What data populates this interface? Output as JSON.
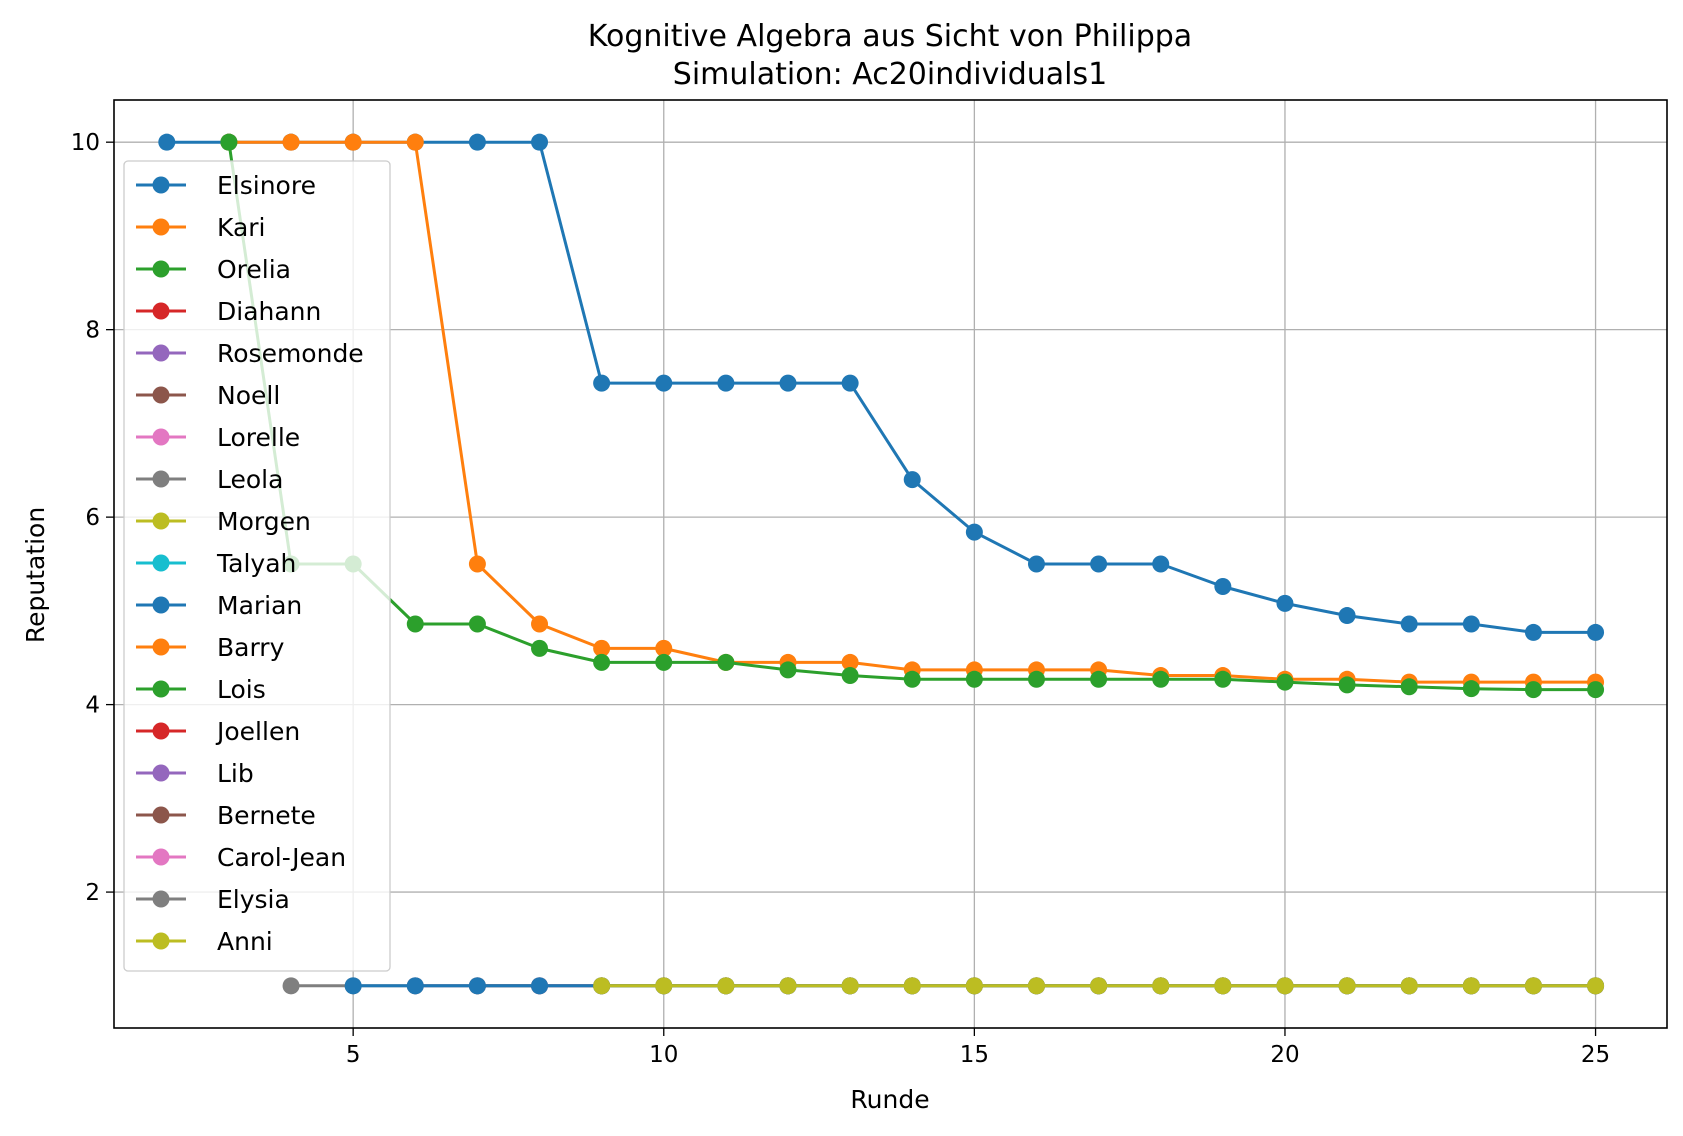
{
  "chart_data": {
    "type": "line",
    "title": "Kognitive Algebra aus Sicht von Philippa",
    "subtitle": "Simulation: Ac20individuals1",
    "xlabel": "Runde",
    "ylabel": "Reputation",
    "xlim": [
      1.15,
      26.15
    ],
    "ylim": [
      0.55,
      10.45
    ],
    "xticks": [
      5,
      10,
      15,
      20,
      25
    ],
    "yticks": [
      2,
      4,
      6,
      8,
      10
    ],
    "grid": true,
    "legend_position": "upper-left",
    "series": [
      {
        "name": "Elsinore",
        "color": "#1f77b4",
        "x": [
          2,
          3,
          4,
          5,
          6,
          7,
          8,
          9,
          10,
          11,
          12,
          13,
          14,
          15,
          16,
          17,
          18,
          19,
          20,
          21,
          22,
          23,
          24,
          25
        ],
        "y": [
          10,
          10,
          10,
          10,
          10,
          10,
          10,
          7.43,
          7.43,
          7.43,
          7.43,
          7.43,
          6.4,
          5.84,
          5.5,
          5.5,
          5.5,
          5.26,
          5.08,
          4.95,
          4.86,
          4.86,
          4.77,
          4.77
        ]
      },
      {
        "name": "Kari",
        "color": "#ff7f0e",
        "x": [
          3,
          4,
          5,
          6,
          7,
          8,
          9,
          10,
          11,
          12,
          13,
          14,
          15,
          16,
          17,
          18,
          19,
          20,
          21,
          22,
          23,
          24,
          25
        ],
        "y": [
          10,
          10,
          10,
          10,
          5.5,
          4.86,
          4.6,
          4.6,
          4.45,
          4.45,
          4.45,
          4.37,
          4.37,
          4.37,
          4.37,
          4.31,
          4.31,
          4.27,
          4.27,
          4.24,
          4.24,
          4.24,
          4.24
        ]
      },
      {
        "name": "Orelia",
        "color": "#2ca02c",
        "x": [
          3,
          4,
          5,
          6,
          7,
          8,
          9,
          10,
          11,
          12,
          13,
          14,
          15,
          16,
          17,
          18,
          19,
          20,
          21,
          22,
          23,
          24,
          25
        ],
        "y": [
          10,
          5.5,
          5.5,
          4.86,
          4.86,
          4.6,
          4.45,
          4.45,
          4.45,
          4.37,
          4.31,
          4.27,
          4.27,
          4.27,
          4.27,
          4.27,
          4.27,
          4.24,
          4.21,
          4.19,
          4.17,
          4.16,
          4.16
        ]
      },
      {
        "name": "Diahann",
        "color": "#d62728",
        "x": [],
        "y": []
      },
      {
        "name": "Rosemonde",
        "color": "#9467bd",
        "x": [
          6,
          7,
          8,
          9,
          10,
          11,
          12,
          13,
          14,
          15,
          16,
          17,
          18,
          19,
          20,
          21,
          22,
          23,
          24,
          25
        ],
        "y": [
          1,
          1,
          1,
          1,
          1,
          1,
          1,
          1,
          1,
          1,
          1,
          1,
          1,
          1,
          1,
          1,
          1,
          1,
          1,
          1
        ]
      },
      {
        "name": "Noell",
        "color": "#8c564b",
        "x": [
          7,
          8,
          9,
          10,
          11,
          12,
          13,
          14,
          15,
          16,
          17,
          18,
          19,
          20,
          21,
          22,
          23,
          24,
          25
        ],
        "y": [
          1,
          1,
          1,
          1,
          1,
          1,
          1,
          1,
          1,
          1,
          1,
          1,
          1,
          1,
          1,
          1,
          1,
          1,
          1
        ]
      },
      {
        "name": "Lorelle",
        "color": "#e377c2",
        "x": [
          8,
          9,
          10,
          11,
          12,
          13,
          14,
          15,
          16,
          17,
          18,
          19,
          20,
          21,
          22,
          23,
          24,
          25
        ],
        "y": [
          1,
          1,
          1,
          1,
          1,
          1,
          1,
          1,
          1,
          1,
          1,
          1,
          1,
          1,
          1,
          1,
          1,
          1
        ]
      },
      {
        "name": "Leola",
        "color": "#7f7f7f",
        "x": [
          4,
          5,
          6,
          7,
          8,
          9,
          10,
          11,
          12,
          13,
          14,
          15,
          16,
          17,
          18,
          19,
          20,
          21,
          22,
          23,
          24,
          25
        ],
        "y": [
          1,
          1,
          1,
          1,
          1,
          1,
          1,
          1,
          1,
          1,
          1,
          1,
          1,
          1,
          1,
          1,
          1,
          1,
          1,
          1,
          1,
          1
        ]
      },
      {
        "name": "Morgen",
        "color": "#bcbd22",
        "x": [
          9,
          10,
          11,
          12,
          13,
          14,
          15,
          16,
          17,
          18,
          19,
          20,
          21,
          22,
          23,
          24,
          25
        ],
        "y": [
          1,
          1,
          1,
          1,
          1,
          1,
          1,
          1,
          1,
          1,
          1,
          1,
          1,
          1,
          1,
          1,
          1
        ]
      },
      {
        "name": "Talyah",
        "color": "#17becf",
        "x": [],
        "y": []
      },
      {
        "name": "Marian",
        "color": "#1f77b4",
        "x": [
          5,
          6,
          7,
          8,
          9,
          10,
          11,
          12,
          13,
          14,
          15,
          16,
          17,
          18,
          19,
          20,
          21,
          22,
          23,
          24,
          25
        ],
        "y": [
          1,
          1,
          1,
          1,
          1,
          1,
          1,
          1,
          1,
          1,
          1,
          1,
          1,
          1,
          1,
          1,
          1,
          1,
          1,
          1,
          1
        ]
      },
      {
        "name": "Barry",
        "color": "#ff7f0e",
        "x": [],
        "y": []
      },
      {
        "name": "Lois",
        "color": "#2ca02c",
        "x": [],
        "y": []
      },
      {
        "name": "Joellen",
        "color": "#d62728",
        "x": [],
        "y": []
      },
      {
        "name": "Lib",
        "color": "#9467bd",
        "x": [],
        "y": []
      },
      {
        "name": "Bernete",
        "color": "#8c564b",
        "x": [],
        "y": []
      },
      {
        "name": "Carol-Jean",
        "color": "#e377c2",
        "x": [],
        "y": []
      },
      {
        "name": "Elysia",
        "color": "#7f7f7f",
        "x": [],
        "y": []
      },
      {
        "name": "Anni",
        "color": "#bcbd22",
        "x": [
          9,
          10,
          11,
          12,
          13,
          14,
          15,
          16,
          17,
          18,
          19,
          20,
          21,
          22,
          23,
          24,
          25
        ],
        "y": [
          1,
          1,
          1,
          1,
          1,
          1,
          1,
          1,
          1,
          1,
          1,
          1,
          1,
          1,
          1,
          1,
          1
        ]
      }
    ]
  }
}
